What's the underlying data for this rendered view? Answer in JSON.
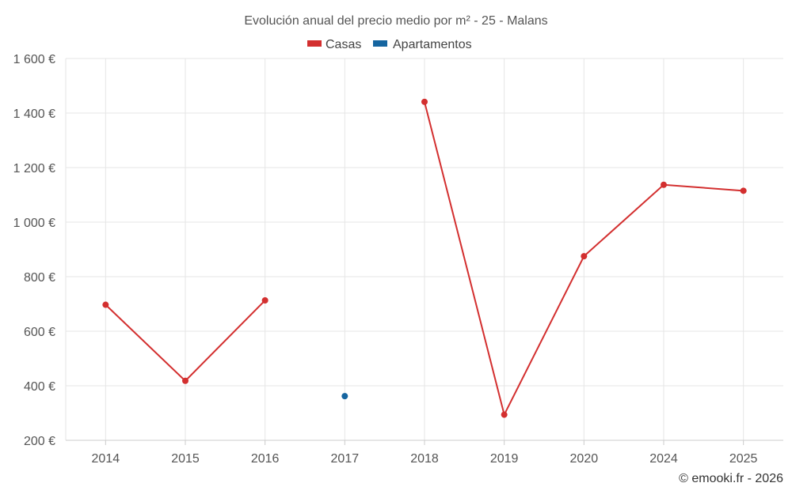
{
  "chart_data": {
    "type": "line",
    "title": "Evolución anual del precio medio por m² - 25 - Malans",
    "categories": [
      "2014",
      "2015",
      "2016",
      "2017",
      "2018",
      "2019",
      "2020",
      "2024",
      "2025"
    ],
    "series": [
      {
        "name": "Casas",
        "color": "#d32f2f",
        "values": [
          697,
          418,
          713,
          null,
          1441,
          294,
          875,
          1137,
          1115
        ]
      },
      {
        "name": "Apartamentos",
        "color": "#1565a0",
        "values": [
          null,
          null,
          null,
          362,
          null,
          null,
          null,
          null,
          null
        ]
      }
    ],
    "ylim": [
      200,
      1600
    ],
    "yticks": [
      200,
      400,
      600,
      800,
      1000,
      1200,
      1400,
      1600
    ],
    "ytick_labels": [
      "200 €",
      "400 €",
      "600 €",
      "800 €",
      "1 000 €",
      "1 200 €",
      "1 400 €",
      "1 600 €"
    ],
    "grid": true,
    "legend_position": "top-center"
  },
  "credit": "© emooki.fr - 2026"
}
